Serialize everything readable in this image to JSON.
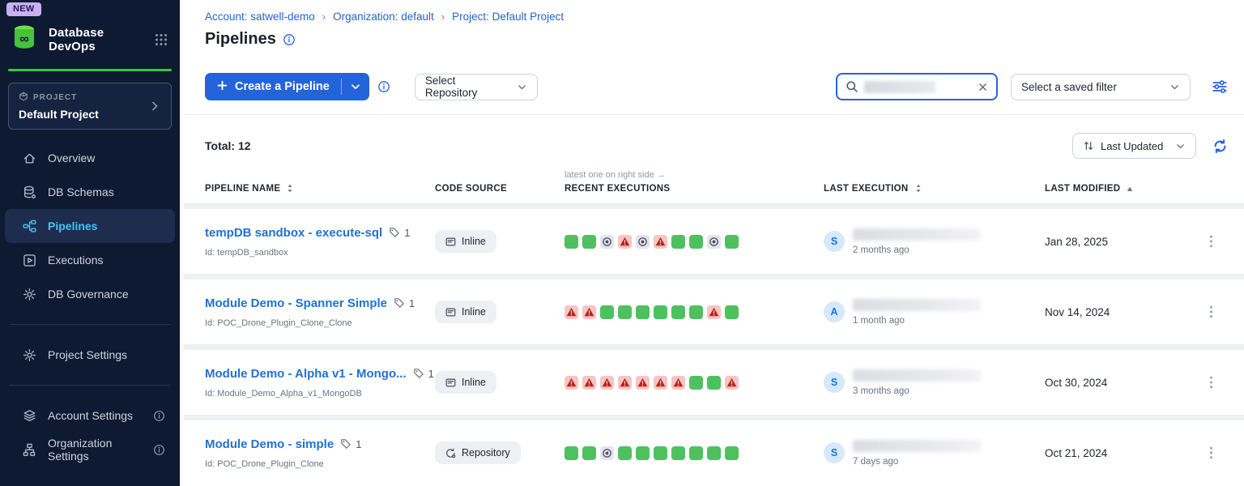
{
  "app": {
    "name": "Database DevOps",
    "new_badge": "NEW"
  },
  "colors": {
    "accent_blue": "#2364d9",
    "breadcrumb_blue": "#2264d1",
    "link_blue": "#2071d4",
    "active_nav_cyan": "#41c6f4",
    "sidebar_bg": "#0d1a31",
    "logo_green": "#4ec22f",
    "success_green": "#4ec15f",
    "failed_bg": "#f5c6c3",
    "failed_red": "#bb2018",
    "skipped_bg": "#e4e4ee"
  },
  "sidebar": {
    "project_card": {
      "label": "PROJECT",
      "name": "Default Project"
    },
    "nav": [
      {
        "label": "Overview",
        "icon": "home",
        "active": false,
        "info": false
      },
      {
        "label": "DB Schemas",
        "icon": "database",
        "active": false,
        "info": false
      },
      {
        "label": "Pipelines",
        "icon": "pipelines",
        "active": true,
        "info": false
      },
      {
        "label": "Executions",
        "icon": "executions",
        "active": false,
        "info": false
      },
      {
        "label": "DB Governance",
        "icon": "governance",
        "active": false,
        "info": false
      }
    ],
    "nav_project": [
      {
        "label": "Project Settings",
        "icon": "settings",
        "active": false,
        "info": false
      }
    ],
    "nav_account": [
      {
        "label": "Account Settings",
        "icon": "account",
        "active": false,
        "info": true
      },
      {
        "label": "Organization Settings",
        "icon": "organization",
        "active": false,
        "info": true
      }
    ]
  },
  "header": {
    "breadcrumb": [
      "Account: satwell-demo",
      "Organization: default",
      "Project: Default Project"
    ],
    "title": "Pipelines"
  },
  "toolbar": {
    "create_button_label": "Create a Pipeline",
    "repository_dropdown": "Select Repository",
    "search_value": "",
    "saved_filter_dropdown": "Select a saved filter"
  },
  "list": {
    "total_label": "Total: 12",
    "sort_label": "Last Updated",
    "executions_hint": "latest one on right side →",
    "columns": [
      {
        "label": "PIPELINE NAME",
        "sort": "both"
      },
      {
        "label": "CODE SOURCE",
        "sort": "none"
      },
      {
        "label": "RECENT EXECUTIONS",
        "sort": "none"
      },
      {
        "label": "LAST EXECUTION",
        "sort": "both"
      },
      {
        "label": "LAST MODIFIED",
        "sort": "asc"
      }
    ],
    "rows": [
      {
        "name": "tempDB sandbox - execute-sql",
        "tag_count": "1",
        "id": "Id: tempDB_sandbox",
        "source": "Inline",
        "source_icon": "inline",
        "executions": [
          "success",
          "success",
          "skipped",
          "failed",
          "skipped",
          "failed",
          "success",
          "success",
          "skipped",
          "success"
        ],
        "avatar": "S",
        "last_execution_time": "2 months ago",
        "last_modified": "Jan 28, 2025"
      },
      {
        "name": "Module Demo - Spanner Simple",
        "tag_count": "1",
        "id": "Id: POC_Drone_Plugin_Clone_Clone",
        "source": "Inline",
        "source_icon": "inline",
        "executions": [
          "failed",
          "failed",
          "success",
          "success",
          "success",
          "success",
          "success",
          "success",
          "failed",
          "success"
        ],
        "avatar": "A",
        "last_execution_time": "1 month ago",
        "last_modified": "Nov 14, 2024"
      },
      {
        "name": "Module Demo - Alpha v1 - Mongo...",
        "tag_count": "1",
        "id": "Id: Module_Demo_Alpha_v1_MongoDB",
        "source": "Inline",
        "source_icon": "inline",
        "executions": [
          "failed",
          "failed",
          "failed",
          "failed",
          "failed",
          "failed",
          "failed",
          "success",
          "success",
          "failed"
        ],
        "avatar": "S",
        "last_execution_time": "3 months ago",
        "last_modified": "Oct 30, 2024"
      },
      {
        "name": "Module Demo - simple",
        "tag_count": "1",
        "id": "Id: POC_Drone_Plugin_Clone",
        "source": "Repository",
        "source_icon": "repository",
        "executions": [
          "success",
          "success",
          "skipped",
          "success",
          "success",
          "success",
          "success",
          "success",
          "success",
          "success"
        ],
        "avatar": "S",
        "last_execution_time": "7 days ago",
        "last_modified": "Oct 21, 2024"
      }
    ]
  }
}
